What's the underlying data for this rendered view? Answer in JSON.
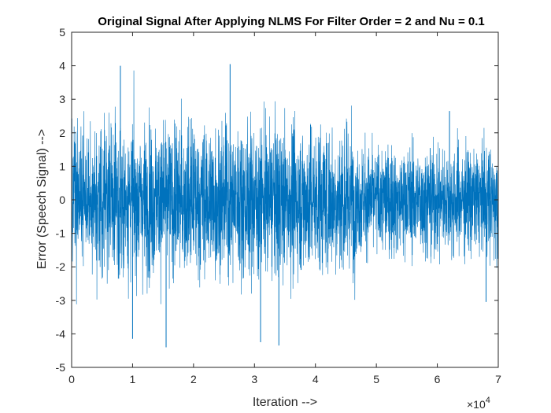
{
  "chart_data": {
    "type": "line",
    "title": "Original Signal After Applying NLMS For Filter Order = 2 and Nu = 0.1",
    "xlabel": "Iteration -->",
    "ylabel": "Error (Speech Signal) -->",
    "xlim": [
      0,
      70000
    ],
    "ylim": [
      -5,
      5
    ],
    "x_ticks": [
      "0",
      "1",
      "2",
      "3",
      "4",
      "5",
      "6",
      "7"
    ],
    "y_ticks": [
      "-5",
      "-4",
      "-3",
      "-2",
      "-1",
      "0",
      "1",
      "2",
      "3",
      "4",
      "5"
    ],
    "x_exponent_base": "×10",
    "x_exponent_power": "4",
    "grid": false,
    "series": [
      {
        "color": "#0072BD",
        "n_points": 70000,
        "description_segments": [
          {
            "x_start": 0,
            "x_end": 46500,
            "approx_bulk_range": [
              -2.5,
              2.5
            ],
            "approx_peaks": [
              -4.4,
              4.0
            ]
          },
          {
            "x_start": 46500,
            "x_end": 70000,
            "approx_bulk_range": [
              -1.8,
              1.8
            ],
            "approx_peaks": [
              -3.0,
              2.7
            ]
          }
        ],
        "notable_peaks": [
          {
            "x": 8000,
            "y": 4.0
          },
          {
            "x": 26000,
            "y": 4.05
          },
          {
            "x": 15500,
            "y": -4.4
          },
          {
            "x": 34000,
            "y": -4.35
          },
          {
            "x": 31000,
            "y": -4.25
          },
          {
            "x": 10000,
            "y": -4.15
          },
          {
            "x": 62000,
            "y": 2.65
          },
          {
            "x": 68000,
            "y": -3.05
          }
        ]
      }
    ]
  }
}
